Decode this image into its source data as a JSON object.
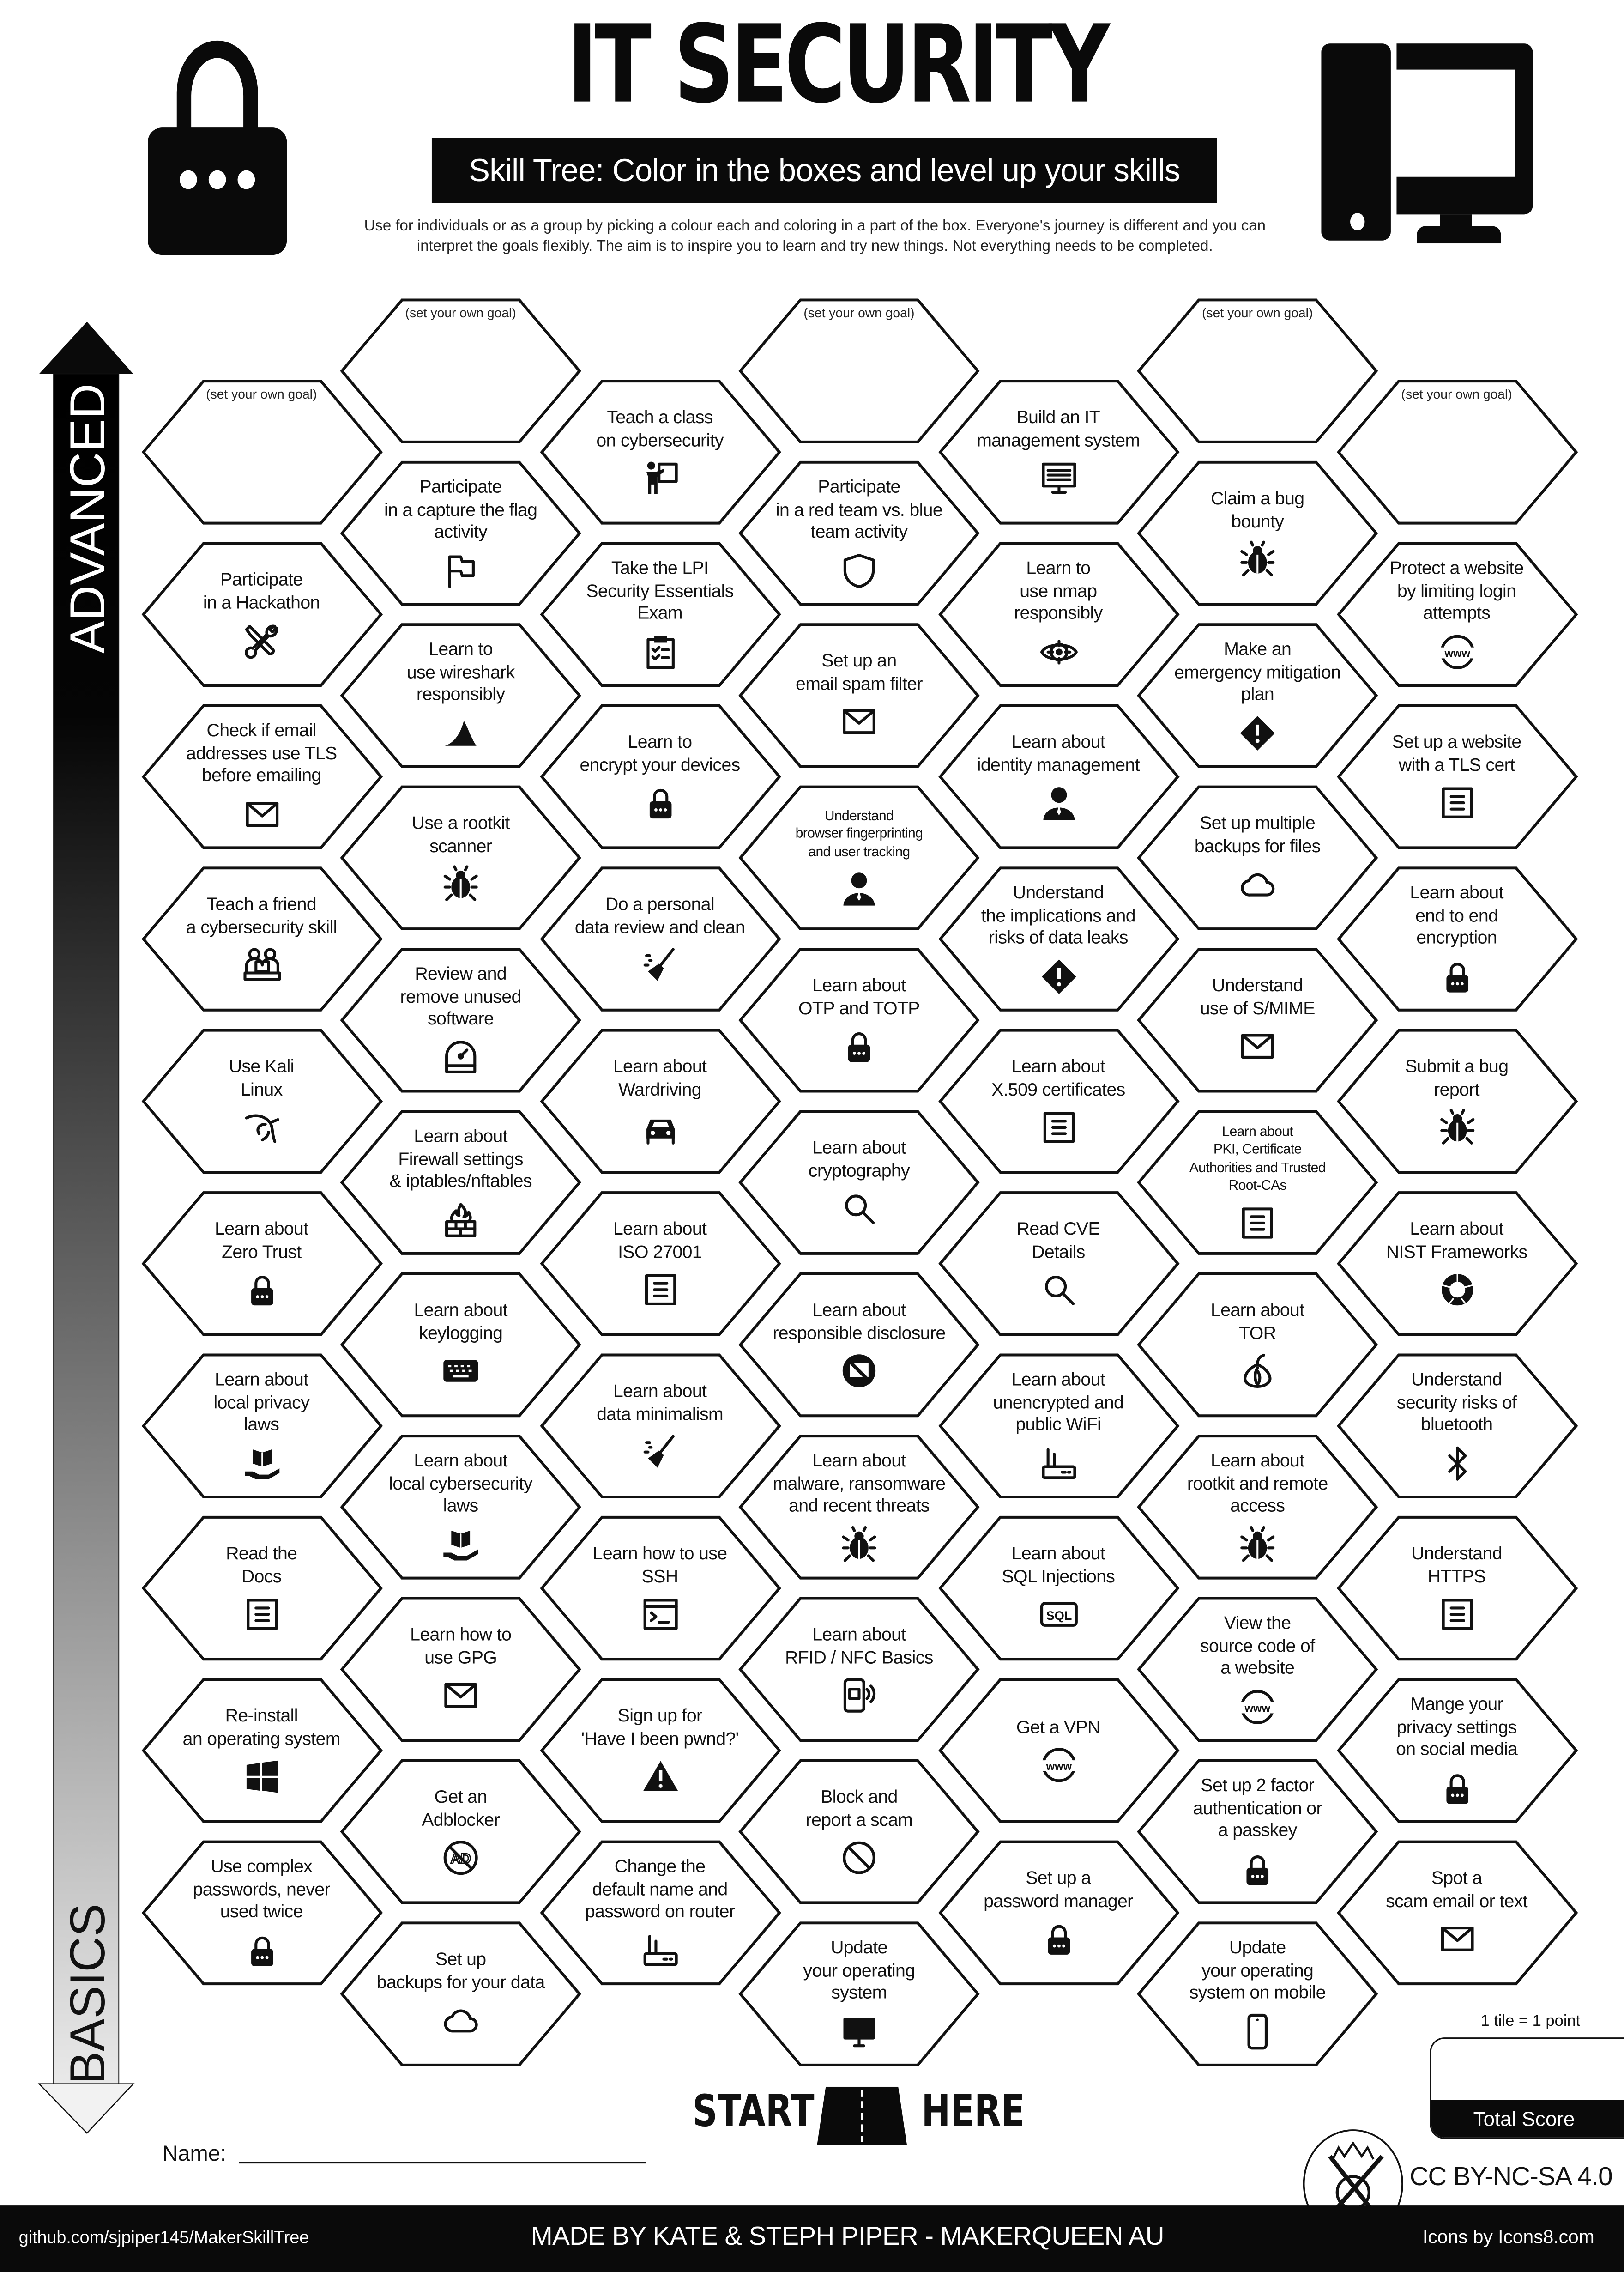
{
  "header": {
    "title": "IT SECURITY",
    "subtitle": "Skill Tree:  Color in the boxes and level up your skills",
    "description": [
      "Use for individuals or as a group by picking a colour each and coloring in a part of the box.  Everyone's journey is different and you can",
      "interpret the goals flexibly.  The aim is to inspire you to learn and try new things. Not everything needs to be completed."
    ]
  },
  "axis": {
    "top_label": "ADVANCED",
    "bottom_label": "BASICS"
  },
  "goal_label": "(set your own goal)",
  "columns": [
    [
      {
        "goal": true
      },
      {
        "text": "Participate\nin a Hackathon",
        "icon": "tools-icon"
      },
      {
        "text": "Check if email\naddresses use TLS\nbefore emailing",
        "icon": "envelope-icon"
      },
      {
        "text": "Teach a friend\na cybersecurity skill",
        "icon": "people-laptop-icon"
      },
      {
        "text": "Use Kali\nLinux",
        "icon": "kali-dragon-icon"
      },
      {
        "text": "Learn about\nZero Trust",
        "icon": "lock-icon"
      },
      {
        "text": "Learn about\nlocal privacy\nlaws",
        "icon": "book-hand-icon"
      },
      {
        "text": "Read the\nDocs",
        "icon": "document-icon"
      },
      {
        "text": "Re-install\nan operating system",
        "icon": "windows-icon"
      },
      {
        "text": "Use complex\npasswords, never\nused twice",
        "icon": "lock-icon"
      }
    ],
    [
      {
        "goal": true
      },
      {
        "text": "Participate\nin a capture the flag\nactivity",
        "icon": "flag-icon"
      },
      {
        "text": "Learn to\nuse wireshark\nresponsibly",
        "icon": "shark-fin-icon"
      },
      {
        "text": "Use a rootkit\nscanner",
        "icon": "bug-icon"
      },
      {
        "text": "Review and\nremove unused\nsoftware",
        "icon": "disk-icon"
      },
      {
        "text": "Learn about\nFirewall settings\n& iptables/nftables",
        "icon": "firewall-icon"
      },
      {
        "text": "Learn about\nkeylogging",
        "icon": "keyboard-icon"
      },
      {
        "text": "Learn about\nlocal cybersecurity\nlaws",
        "icon": "book-hand-icon"
      },
      {
        "text": "Learn how to\nuse GPG",
        "icon": "envelope-icon"
      },
      {
        "text": "Get an\nAdblocker",
        "icon": "adblock-icon"
      },
      {
        "text": "Set up\nbackups for your data",
        "icon": "cloud-icon"
      }
    ],
    [
      {
        "text": "Teach a class\non cybersecurity",
        "icon": "teacher-icon"
      },
      {
        "text": "Take the LPI\nSecurity Essentials\nExam",
        "icon": "clipboard-icon"
      },
      {
        "text": "Learn to\nencrypt your devices",
        "icon": "lock-icon"
      },
      {
        "text": "Do a personal\ndata review and clean",
        "icon": "broom-icon"
      },
      {
        "text": "Learn about\nWardriving",
        "icon": "car-icon"
      },
      {
        "text": "Learn about\nISO 27001",
        "icon": "document-icon"
      },
      {
        "text": "Learn about\ndata minimalism",
        "icon": "broom-icon"
      },
      {
        "text": "Learn how to use\nSSH",
        "icon": "terminal-icon"
      },
      {
        "text": "Sign up for\n'Have I been pwnd?'",
        "icon": "warning-icon"
      },
      {
        "text": "Change the\ndefault name and\npassword on router",
        "icon": "router-icon"
      }
    ],
    [
      {
        "goal": true
      },
      {
        "text": "Participate\nin a red team vs. blue\nteam activity",
        "icon": "shield-icon"
      },
      {
        "text": "Set up an\nemail spam filter",
        "icon": "envelope-icon"
      },
      {
        "text": "Understand\nbrowser fingerprinting\nand user tracking",
        "icon": "person-icon",
        "small": true
      },
      {
        "text": "Learn about\nOTP and TOTP",
        "icon": "lock-icon"
      },
      {
        "text": "Learn about\ncryptography",
        "icon": "magnifier-icon"
      },
      {
        "text": "Learn about\nresponsible disclosure",
        "icon": "no-chat-icon"
      },
      {
        "text": "Learn about\nmalware, ransomware\nand recent threats",
        "icon": "bug-icon"
      },
      {
        "text": "Learn about\nRFID / NFC Basics",
        "icon": "nfc-phone-icon"
      },
      {
        "text": "Block and\nreport a scam",
        "icon": "no-sign-icon"
      },
      {
        "text": "Update\nyour operating\nsystem",
        "icon": "monitor-icon"
      }
    ],
    [
      {
        "text": "Build an IT\nmanagement system",
        "icon": "monitor-list-icon"
      },
      {
        "text": "Learn to\nuse nmap\nresponsibly",
        "icon": "eye-icon"
      },
      {
        "text": "Learn about\nidentity management",
        "icon": "person-icon"
      },
      {
        "text": "Understand\nthe implications and\nrisks of data leaks",
        "icon": "diamond-alert-icon"
      },
      {
        "text": "Learn about\nX.509 certificates",
        "icon": "document-icon"
      },
      {
        "text": "Read CVE\nDetails",
        "icon": "magnifier-icon"
      },
      {
        "text": "Learn about\nunencrypted and\npublic WiFi",
        "icon": "router-icon"
      },
      {
        "text": "Learn about\nSQL Injections",
        "icon": "sql-icon"
      },
      {
        "text": "Get a VPN",
        "icon": "www-icon"
      },
      {
        "text": "Set up a\npassword manager",
        "icon": "lock-icon"
      }
    ],
    [
      {
        "goal": true
      },
      {
        "text": "Claim a bug\nbounty",
        "icon": "bug-icon"
      },
      {
        "text": "Make an\nemergency mitigation\nplan",
        "icon": "diamond-alert-icon"
      },
      {
        "text": "Set up multiple\nbackups for files",
        "icon": "cloud-icon"
      },
      {
        "text": "Understand\nuse of S/MIME",
        "icon": "envelope-icon"
      },
      {
        "text": "Learn about\nPKI, Certificate\nAuthorities and Trusted\nRoot-CAs",
        "icon": "document-icon",
        "small": true
      },
      {
        "text": "Learn about\nTOR",
        "icon": "onion-icon"
      },
      {
        "text": "Learn about\nrootkit and remote\naccess",
        "icon": "bug-icon"
      },
      {
        "text": "View the\nsource code of\na website",
        "icon": "www-icon"
      },
      {
        "text": "Set up 2 factor\nauthentication or\na passkey",
        "icon": "lock-icon"
      },
      {
        "text": "Update\nyour operating\nsystem on mobile",
        "icon": "phone-icon"
      }
    ],
    [
      {
        "goal": true
      },
      {
        "text": "Protect a website\nby limiting login\nattempts",
        "icon": "www-icon"
      },
      {
        "text": "Set up a website\nwith a TLS cert",
        "icon": "document-icon"
      },
      {
        "text": "Learn about\nend to end\nencryption",
        "icon": "lock-icon"
      },
      {
        "text": "Submit a bug\nreport",
        "icon": "bug-icon"
      },
      {
        "text": "Learn about\nNIST Frameworks",
        "icon": "donut-icon"
      },
      {
        "text": "Understand\nsecurity risks of\nbluetooth",
        "icon": "bluetooth-icon"
      },
      {
        "text": "Understand\nHTTPS",
        "icon": "document-icon"
      },
      {
        "text": "Mange your\nprivacy settings\non social media",
        "icon": "lock-icon"
      },
      {
        "text": "Spot a\nscam email or text",
        "icon": "envelope-icon"
      }
    ]
  ],
  "start": {
    "left": "START",
    "right": "HERE"
  },
  "name_label": "Name:",
  "score": {
    "note": "1 tile = 1 point",
    "label": "Total Score"
  },
  "license": "CC BY-NC-SA 4.0",
  "footer": {
    "repo": "github.com/sjpiper145/MakerSkillTree",
    "credits": "MADE BY KATE & STEPH PIPER  -  MAKERQUEEN AU",
    "icons_credit": "Icons by Icons8.com"
  },
  "colors": {
    "ink": "#0a0a0a",
    "paper": "#ffffff",
    "arrow_bottom": "#e6e6e6"
  }
}
